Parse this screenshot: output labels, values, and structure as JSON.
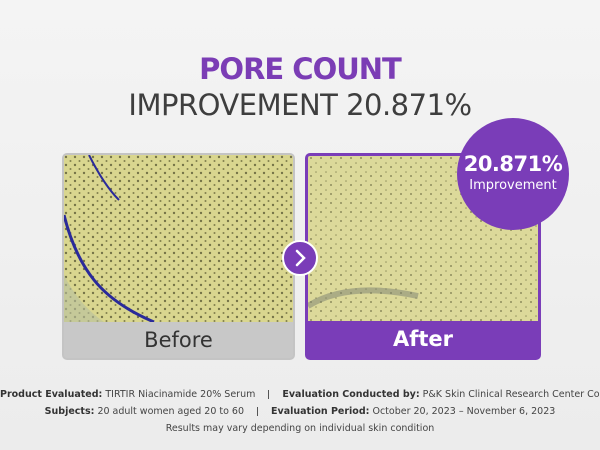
{
  "header": {
    "title": "PORE COUNT",
    "subtitle": "IMPROVEMENT 20.871%"
  },
  "panels": {
    "before": "Before",
    "after": "After"
  },
  "badge": {
    "value": "20.871%",
    "label": "Improvement"
  },
  "footer": {
    "product_label": "Product Evaluated:",
    "product": "TIRTIR Niacinamide 20% Serum",
    "conducted_label": "Evaluation Conducted by:",
    "conducted": "P&K Skin Clinical Research Center Co., Ltd.",
    "subjects_label": "Subjects:",
    "subjects": "20 adult women aged 20 to 60",
    "period_label": "Evaluation Period:",
    "period": "October 20, 2023 – November 6, 2023",
    "note": "Results may vary depending on individual skin condition"
  }
}
